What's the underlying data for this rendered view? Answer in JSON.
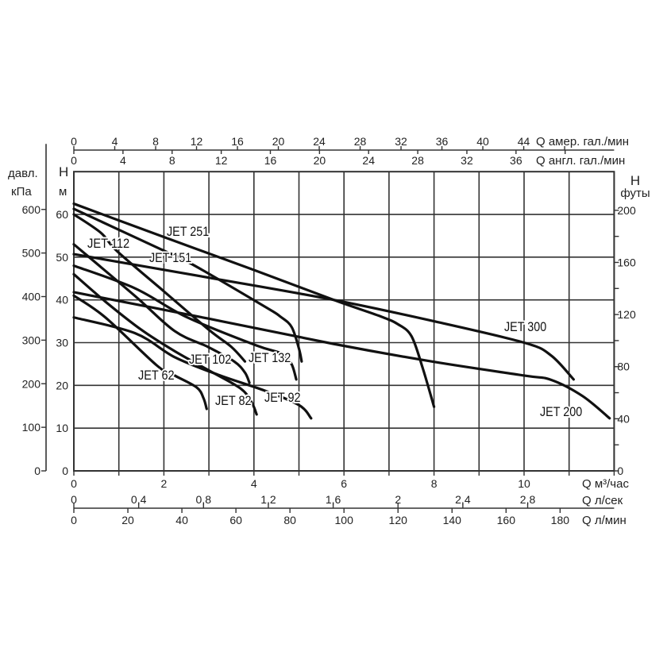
{
  "chart_data": {
    "type": "line",
    "xlabel": "Q м³/час",
    "ylabel": "H м",
    "xlim": [
      0,
      12
    ],
    "ylim": [
      0,
      70
    ],
    "grid": true,
    "x_ticks": [
      0,
      2,
      4,
      6,
      8,
      10
    ],
    "y_ticks": [
      0,
      10,
      20,
      30,
      40,
      50,
      60
    ],
    "left_axis": {
      "title_line1": "давл.",
      "title_line2": "кПа",
      "ticks": [
        0,
        100,
        200,
        300,
        400,
        500,
        600
      ]
    },
    "h_axis": {
      "title_line1": "H",
      "title_line2": "м"
    },
    "right_axis": {
      "title_line1": "H",
      "title_line2": "футы",
      "ticks": [
        0,
        40,
        80,
        120,
        160,
        200
      ]
    },
    "top_axis_us": {
      "label": "Q  амер. гал./мин",
      "ticks": [
        0,
        4,
        8,
        12,
        16,
        20,
        24,
        28,
        32,
        36,
        40,
        44
      ]
    },
    "top_axis_uk": {
      "label": "Q  англ. гал./мин",
      "ticks": [
        0,
        4,
        8,
        12,
        16,
        20,
        24,
        28,
        32,
        36
      ]
    },
    "bottom_axis_m3h": {
      "label": "Q  м³/час"
    },
    "bottom_axis_ls": {
      "label": "Q  л/сек",
      "ticks": [
        "0",
        "0,4",
        "0,8",
        "1,2",
        "1,6",
        "2",
        "2,4",
        "2,8"
      ]
    },
    "bottom_axis_lmin": {
      "label": "Q  л/мин",
      "ticks": [
        0,
        20,
        40,
        60,
        80,
        100,
        120,
        140,
        160,
        180
      ]
    },
    "series": [
      {
        "name": "JET 251",
        "points": [
          [
            0,
            62.5
          ],
          [
            2,
            54.7
          ],
          [
            4,
            47
          ],
          [
            5.77,
            40
          ],
          [
            6.8,
            36.2
          ],
          [
            7.2,
            34.3
          ],
          [
            7.5,
            31.5
          ],
          [
            7.75,
            24
          ],
          [
            8,
            15
          ]
        ]
      },
      {
        "name": "JET 300",
        "points": [
          [
            0,
            50.7
          ],
          [
            3,
            45.2
          ],
          [
            5.77,
            40
          ],
          [
            8,
            35
          ],
          [
            10,
            30
          ],
          [
            10.6,
            27
          ],
          [
            11.1,
            21.4
          ]
        ]
      },
      {
        "name": "JET 200",
        "points": [
          [
            0,
            41.8
          ],
          [
            3,
            35.6
          ],
          [
            5.77,
            29.7
          ],
          [
            8,
            25.5
          ],
          [
            10,
            22.3
          ],
          [
            10.6,
            21.3
          ],
          [
            11.3,
            17.5
          ],
          [
            11.9,
            12.3
          ]
        ]
      },
      {
        "name": "JET 151",
        "points": [
          [
            0,
            61.3
          ],
          [
            1.9,
            52
          ],
          [
            2.6,
            48.5
          ],
          [
            4.23,
            38.5
          ],
          [
            4.6,
            36
          ],
          [
            4.84,
            33.6
          ],
          [
            5.0,
            28.6
          ],
          [
            5.06,
            25.6
          ]
        ]
      },
      {
        "name": "JET 112",
        "points": [
          [
            0,
            60
          ],
          [
            0.6,
            55.7
          ],
          [
            0.97,
            51.3
          ],
          [
            2,
            42
          ],
          [
            3,
            33
          ],
          [
            3.5,
            29
          ],
          [
            3.8,
            25.6
          ]
        ]
      },
      {
        "name": "JET 102",
        "points": [
          [
            0,
            53
          ],
          [
            1.36,
            40.9
          ],
          [
            2.24,
            32.7
          ],
          [
            2.98,
            29
          ],
          [
            3.56,
            25.6
          ],
          [
            3.8,
            23
          ],
          [
            3.9,
            20.6
          ]
        ]
      },
      {
        "name": "JET 132",
        "points": [
          [
            0,
            48
          ],
          [
            1.36,
            42.7
          ],
          [
            2.5,
            36
          ],
          [
            4.04,
            29.4
          ],
          [
            4.6,
            27.5
          ],
          [
            4.83,
            25.1
          ],
          [
            4.94,
            21.4
          ]
        ]
      },
      {
        "name": "JET 82",
        "points": [
          [
            0,
            46
          ],
          [
            0.7,
            39.6
          ],
          [
            1.5,
            33
          ],
          [
            2.24,
            28
          ],
          [
            3.0,
            23.5
          ],
          [
            3.7,
            19.3
          ],
          [
            3.95,
            16
          ],
          [
            4.06,
            13.2
          ]
        ]
      },
      {
        "name": "JET 62",
        "points": [
          [
            0,
            41
          ],
          [
            0.7,
            35.9
          ],
          [
            1.84,
            24.7
          ],
          [
            2.24,
            22.3
          ],
          [
            2.73,
            19.5
          ],
          [
            2.88,
            17
          ],
          [
            2.95,
            14.5
          ]
        ]
      },
      {
        "name": "JET 92",
        "points": [
          [
            0,
            35.9
          ],
          [
            1.36,
            32.2
          ],
          [
            2.24,
            26.6
          ],
          [
            3.2,
            22.5
          ],
          [
            4.23,
            18.8
          ],
          [
            5.0,
            15.4
          ],
          [
            5.27,
            12.3
          ]
        ]
      }
    ],
    "colors": {
      "line": "#111111",
      "grid": "#333333"
    }
  }
}
